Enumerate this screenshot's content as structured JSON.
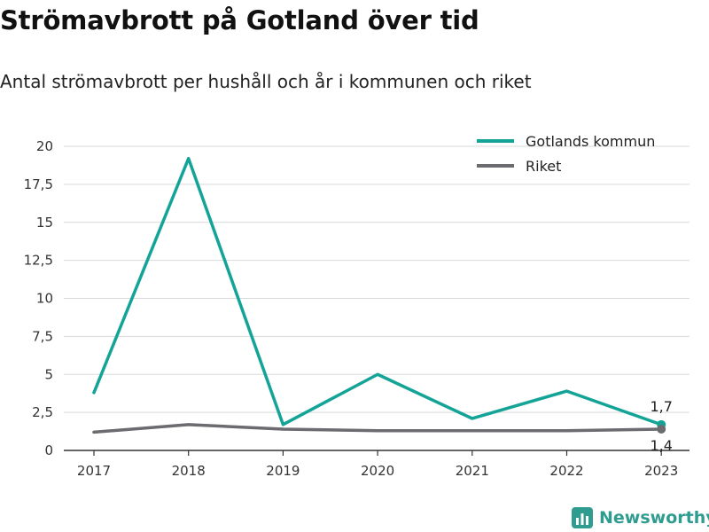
{
  "title": "Strömavbrott på Gotland över tid",
  "subtitle": "Antal strömavbrott per hushåll och år i kommunen och riket",
  "brand": {
    "name": "Newsworthy",
    "icon": "bar-chart-logo-icon",
    "color": "#2f9c90"
  },
  "chart_data": {
    "type": "line",
    "title": "Strömavbrott på Gotland över tid",
    "subtitle": "Antal strömavbrott per hushåll och år i kommunen och riket",
    "xlabel": "",
    "ylabel": "",
    "x": [
      "2017",
      "2018",
      "2019",
      "2020",
      "2021",
      "2022",
      "2023"
    ],
    "ylim": [
      0,
      20
    ],
    "yticks": [
      0,
      2.5,
      5,
      7.5,
      10,
      12.5,
      15,
      17.5,
      20
    ],
    "ytick_labels": [
      "0",
      "2,5",
      "5",
      "7,5",
      "10",
      "12,5",
      "15",
      "17,5",
      "20"
    ],
    "grid": true,
    "legend_position": "top-right",
    "series": [
      {
        "name": "Gotlands kommun",
        "color": "#13a497",
        "values": [
          3.8,
          19.2,
          1.7,
          5.0,
          2.1,
          3.9,
          1.7
        ]
      },
      {
        "name": "Riket",
        "color": "#6b6b70",
        "values": [
          1.2,
          1.7,
          1.4,
          1.3,
          1.3,
          1.3,
          1.4
        ]
      }
    ],
    "end_labels": [
      "1,7",
      "1,4"
    ]
  }
}
